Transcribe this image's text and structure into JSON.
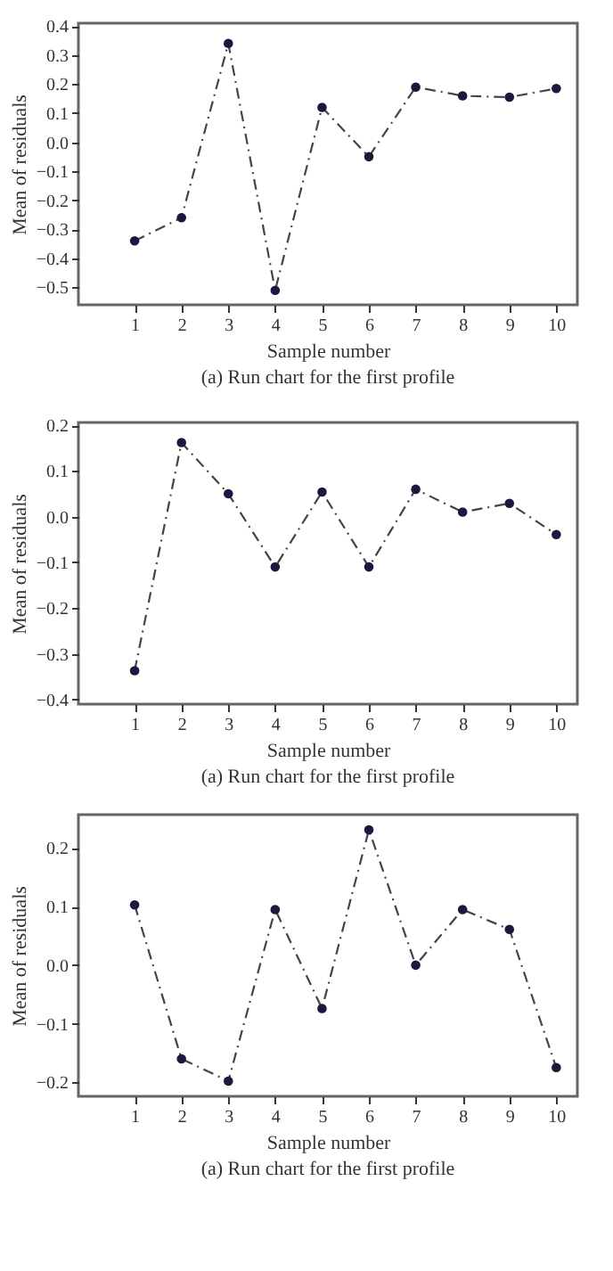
{
  "chart_data": [
    {
      "type": "line",
      "xlabel": "Sample number",
      "ylabel": "Mean of residuals",
      "annotations": [
        "(a) Run chart for the first profile"
      ],
      "x": [
        1,
        2,
        3,
        4,
        5,
        6,
        7,
        8,
        9,
        10
      ],
      "series": [
        {
          "color": "#1a1a40",
          "values": [
            -0.34,
            -0.26,
            0.34,
            -0.51,
            0.12,
            -0.05,
            0.19,
            0.16,
            0.155,
            0.185
          ]
        }
      ],
      "xlim": [
        -0.2,
        10.45
      ],
      "xticks": [
        1,
        2,
        3,
        4,
        5,
        6,
        7,
        8,
        9,
        10
      ],
      "ylim": [
        -0.56,
        0.41
      ],
      "yticks": [
        {
          "value": -0.5,
          "label": "−0.5"
        },
        {
          "value": -0.4,
          "label": "−0.4"
        },
        {
          "value": -0.3,
          "label": "−0.3"
        },
        {
          "value": -0.2,
          "label": "−0.2"
        },
        {
          "value": -0.1,
          "label": "−0.1"
        },
        {
          "value": 0,
          "label": "0.0"
        },
        0.1,
        0.2,
        0.3,
        0.4
      ],
      "marker": "circle",
      "line_style": "dashdot",
      "grid": false,
      "legend": false
    },
    {
      "type": "line",
      "xlabel": "Sample number",
      "ylabel": "Mean of residuals",
      "annotations": [
        "(a) Run chart for the first profile"
      ],
      "x": [
        1,
        2,
        3,
        4,
        5,
        6,
        7,
        8,
        9,
        10
      ],
      "series": [
        {
          "color": "#1a1a40",
          "values": [
            -0.337,
            0.162,
            0.05,
            -0.11,
            0.054,
            -0.11,
            0.06,
            0.01,
            0.029,
            -0.039
          ]
        }
      ],
      "xlim": [
        -0.2,
        10.45
      ],
      "xticks": [
        1,
        2,
        3,
        4,
        5,
        6,
        7,
        8,
        9,
        10
      ],
      "ylim": [
        -0.41,
        0.206
      ],
      "yticks": [
        {
          "value": -0.4,
          "label": "−0.4"
        },
        {
          "value": -0.3,
          "label": "−0.3"
        },
        {
          "value": -0.2,
          "label": "−0.2"
        },
        {
          "value": -0.1,
          "label": "−0.1"
        },
        {
          "value": 0,
          "label": "0.0"
        },
        0.1,
        0.2
      ],
      "marker": "circle",
      "line_style": "dashdot",
      "grid": false,
      "legend": false
    },
    {
      "type": "line",
      "xlabel": "Sample number",
      "ylabel": "Mean of residuals",
      "annotations": [
        "(a) Run chart for the first profile"
      ],
      "x": [
        1,
        2,
        3,
        4,
        5,
        6,
        7,
        8,
        9,
        10
      ],
      "series": [
        {
          "color": "#1a1a40",
          "values": [
            0.103,
            -0.16,
            -0.198,
            0.095,
            -0.074,
            0.231,
            0.0,
            0.095,
            0.061,
            -0.175
          ]
        }
      ],
      "xlim": [
        -0.2,
        10.45
      ],
      "xticks": [
        1,
        2,
        3,
        4,
        5,
        6,
        7,
        8,
        9,
        10
      ],
      "ylim": [
        -0.224,
        0.257
      ],
      "yticks": [
        {
          "value": -0.2,
          "label": "−0.2"
        },
        {
          "value": -0.1,
          "label": "−0.1"
        },
        {
          "value": 0,
          "label": "0.0"
        },
        0.1,
        0.2
      ],
      "marker": "circle",
      "line_style": "dashdot",
      "grid": false,
      "legend": false
    }
  ]
}
